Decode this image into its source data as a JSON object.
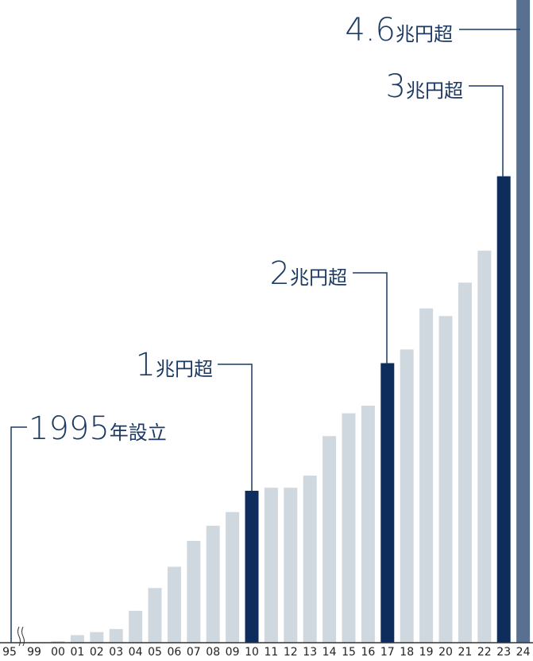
{
  "chart_data": {
    "type": "bar",
    "categories": [
      "95",
      "99",
      "00",
      "01",
      "02",
      "03",
      "04",
      "05",
      "06",
      "07",
      "08",
      "09",
      "10",
      "11",
      "12",
      "13",
      "14",
      "15",
      "16",
      "17",
      "18",
      "19",
      "20",
      "21",
      "22",
      "23",
      "24"
    ],
    "values": [
      0,
      0,
      0.01,
      0.05,
      0.07,
      0.09,
      0.21,
      0.36,
      0.5,
      0.67,
      0.77,
      0.86,
      1.0,
      1.02,
      1.02,
      1.1,
      1.36,
      1.51,
      1.56,
      1.84,
      1.93,
      2.2,
      2.15,
      2.37,
      2.58,
      3.07,
      4.23
    ],
    "colors": [
      "#d0d8df",
      "#d0d8df",
      "#d0d8df",
      "#d0d8df",
      "#d0d8df",
      "#d0d8df",
      "#d0d8df",
      "#d0d8df",
      "#d0d8df",
      "#d0d8df",
      "#d0d8df",
      "#d0d8df",
      "#0f2d5c",
      "#d0d8df",
      "#d0d8df",
      "#d0d8df",
      "#d0d8df",
      "#d0d8df",
      "#d0d8df",
      "#0f2d5c",
      "#d0d8df",
      "#d0d8df",
      "#d0d8df",
      "#d0d8df",
      "#d0d8df",
      "#0f2d5c",
      "#5a7090"
    ],
    "ylim": [
      0,
      4.23
    ],
    "annotations": [
      {
        "number": "1995",
        "unit": "年設立"
      },
      {
        "number": "1",
        "unit": "兆円超"
      },
      {
        "number": "2",
        "unit": "兆円超"
      },
      {
        "number": "3",
        "unit": "兆円超"
      },
      {
        "number": "4.6",
        "unit": "兆円超"
      }
    ]
  }
}
